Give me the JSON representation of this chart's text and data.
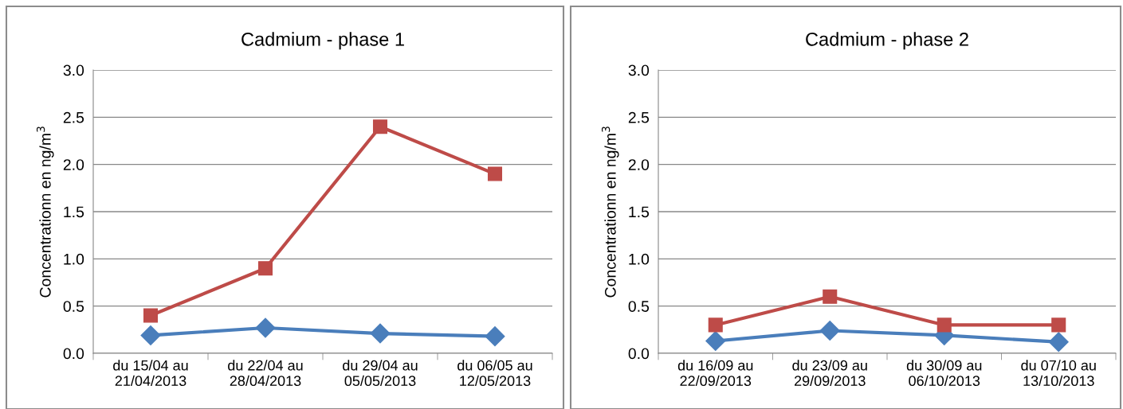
{
  "chart_data": [
    {
      "type": "line",
      "title": "Cadmium - phase 1",
      "ylabel": "Concentrationn en ng/m$^{3}$",
      "categories": [
        "du 15/04 au\n21/04/2013",
        "du 22/04 au\n28/04/2013",
        "du 29/04 au\n05/05/2013",
        "du 06/05 au\n12/05/2013"
      ],
      "series": [
        {
          "color": "#4a7ebb",
          "marker": "diamond",
          "values": [
            0.19,
            0.27,
            0.21,
            0.18
          ]
        },
        {
          "color": "#be4b48",
          "marker": "square",
          "values": [
            0.4,
            0.9,
            2.4,
            1.9
          ]
        }
      ],
      "ylim": [
        0,
        3.0
      ],
      "yticks": [
        {
          "value": 0,
          "label": "0.0"
        },
        {
          "value": 0.5,
          "label": "0.5"
        },
        {
          "value": 1.0,
          "label": "1.0"
        },
        {
          "value": 1.5,
          "label": "1.5"
        },
        {
          "value": 2.0,
          "label": "2.0"
        },
        {
          "value": 2.5,
          "label": "2.5"
        },
        {
          "value": 3.0,
          "label": "3.0"
        }
      ],
      "grid": "y",
      "legend": false
    },
    {
      "type": "line",
      "title": "Cadmium - phase 2",
      "ylabel": "Concentrationn en ng/m$^{3}$",
      "categories": [
        "du 16/09 au\n22/09/2013",
        "du 23/09 au\n29/09/2013",
        "du 30/09 au\n06/10/2013",
        "du 07/10 au\n13/10/2013"
      ],
      "series": [
        {
          "color": "#4a7ebb",
          "marker": "diamond",
          "values": [
            0.13,
            0.24,
            0.19,
            0.12
          ]
        },
        {
          "color": "#be4b48",
          "marker": "square",
          "values": [
            0.3,
            0.6,
            0.3,
            0.3
          ]
        }
      ],
      "ylim": [
        0,
        3.0
      ],
      "yticks": [
        {
          "value": 0,
          "label": "0.0"
        },
        {
          "value": 0.5,
          "label": "0.5"
        },
        {
          "value": 1.0,
          "label": "1.0"
        },
        {
          "value": 1.5,
          "label": "1.5"
        },
        {
          "value": 2.0,
          "label": "2.0"
        },
        {
          "value": 2.5,
          "label": "2.5"
        },
        {
          "value": 3.0,
          "label": "3.0"
        }
      ],
      "grid": "y",
      "legend": false
    }
  ]
}
